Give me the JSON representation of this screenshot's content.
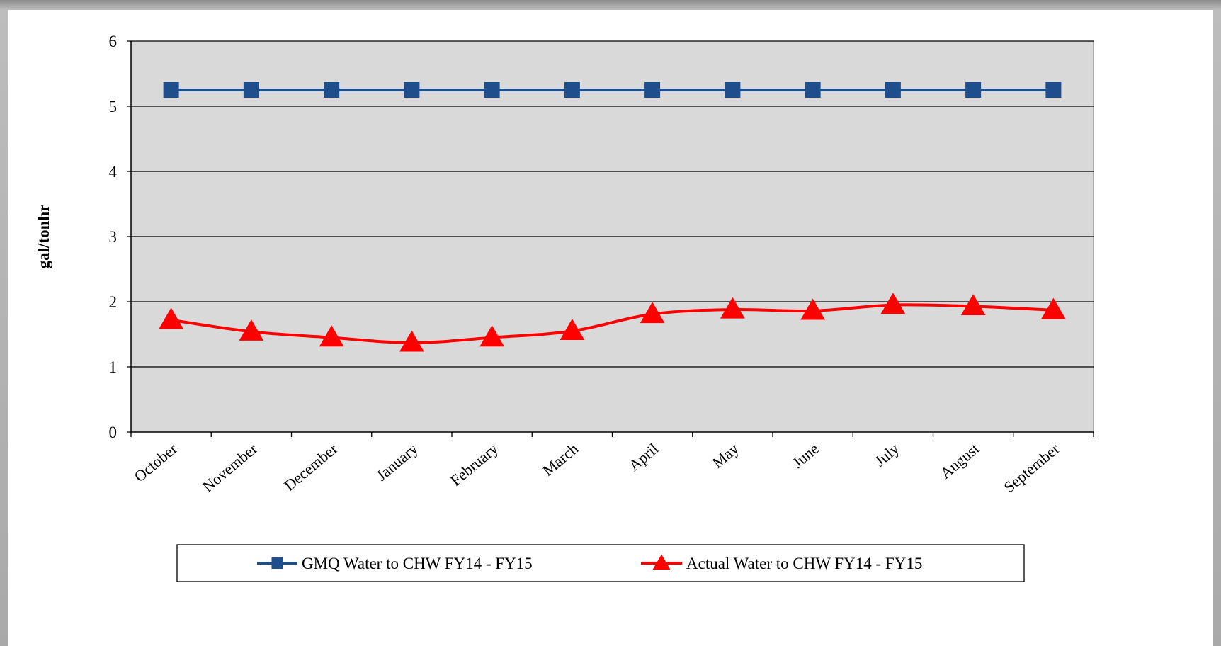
{
  "chart_data": {
    "type": "line",
    "title": "",
    "xlabel": "",
    "ylabel": "gal/tonhr",
    "ylim": [
      0,
      6
    ],
    "yticks": [
      0,
      1,
      2,
      3,
      4,
      5,
      6
    ],
    "grid": true,
    "legend_position": "bottom",
    "plot_background": "#d9d9d9",
    "categories": [
      "October",
      "November",
      "December",
      "January",
      "February",
      "March",
      "April",
      "May",
      "June",
      "July",
      "August",
      "September"
    ],
    "series": [
      {
        "name": "GMQ Water to CHW FY14 - FY15",
        "color": "#1f4e8c",
        "marker": "square",
        "values": [
          5.25,
          5.25,
          5.25,
          5.25,
          5.25,
          5.25,
          5.25,
          5.25,
          5.25,
          5.25,
          5.25,
          5.25
        ]
      },
      {
        "name": "Actual Water to CHW FY14 - FY15",
        "color": "#ff0000",
        "marker": "triangle",
        "values": [
          1.72,
          1.54,
          1.45,
          1.37,
          1.45,
          1.55,
          1.81,
          1.88,
          1.86,
          1.95,
          1.93,
          1.87
        ]
      }
    ]
  }
}
